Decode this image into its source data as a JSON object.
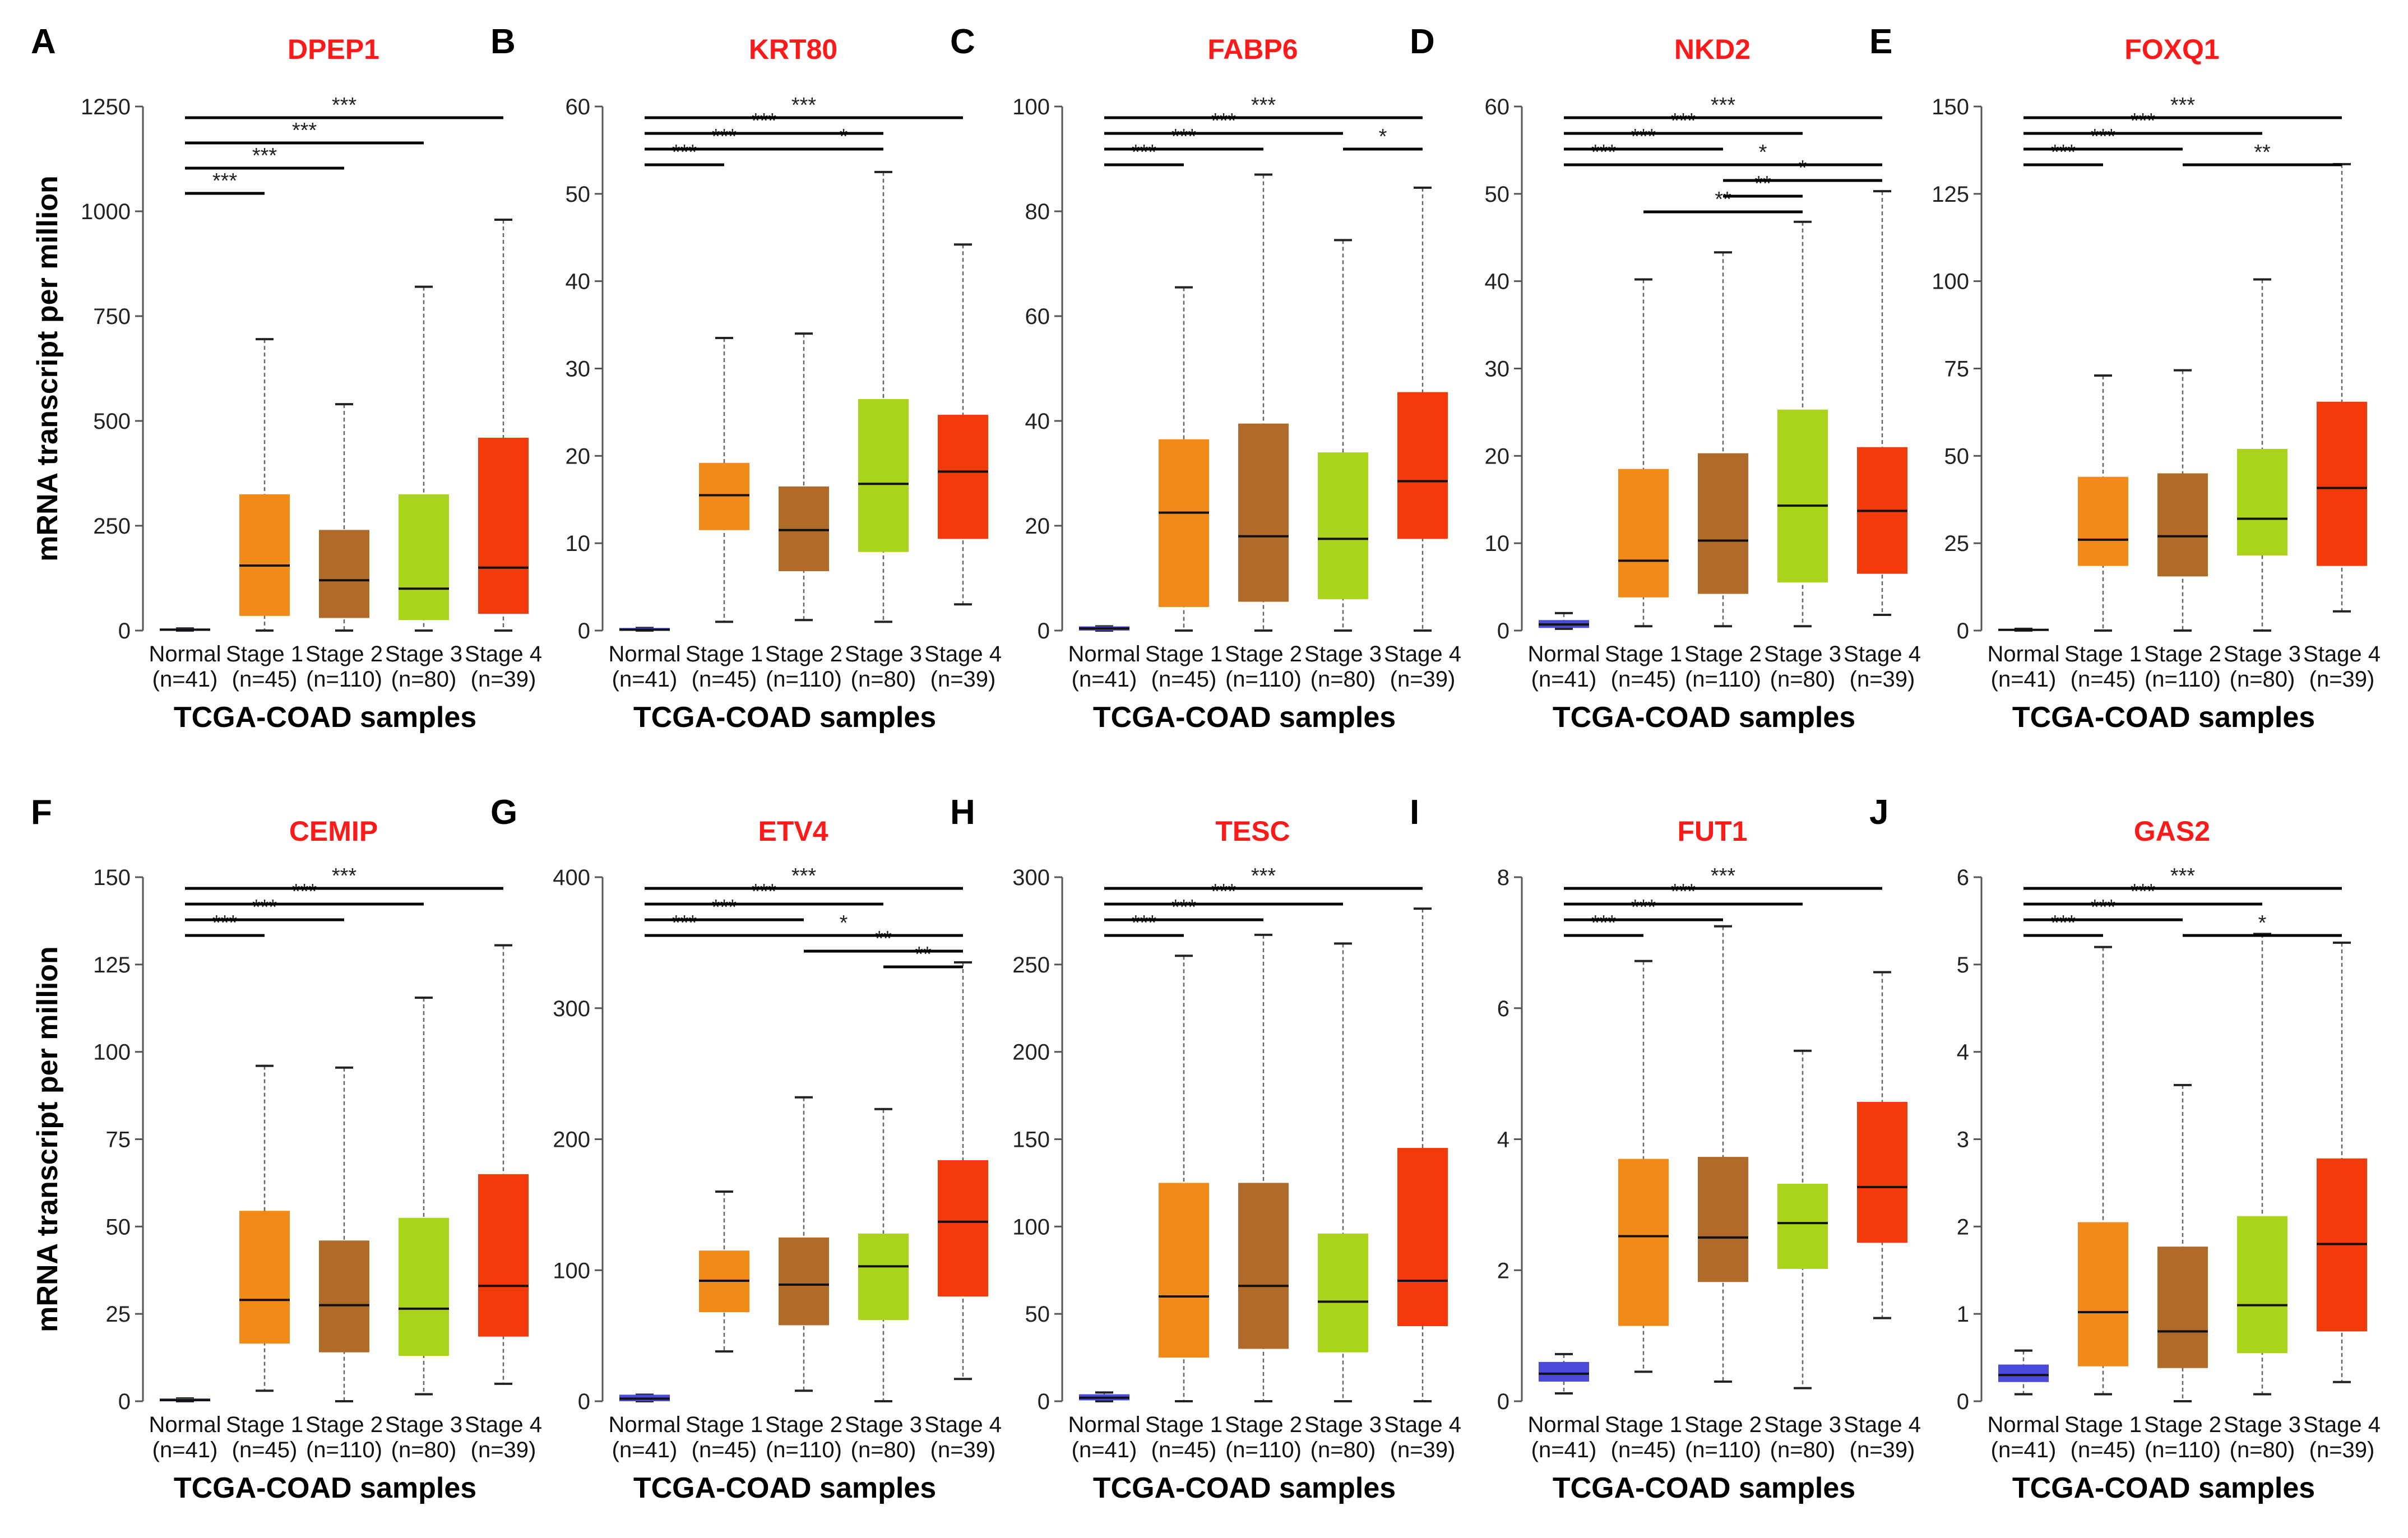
{
  "figure": {
    "ylabel": "mRNA transcript per million",
    "xlabel": "TCGA-COAD samples"
  },
  "categories": [
    {
      "name": "Normal",
      "n": "(n=41)",
      "color": "#4a4ad8"
    },
    {
      "name": "Stage 1",
      "n": "(n=45)",
      "color": "#f28a1a"
    },
    {
      "name": "Stage 2",
      "n": "(n=110)",
      "color": "#b06a2a"
    },
    {
      "name": "Stage 3",
      "n": "(n=80)",
      "color": "#aad41a"
    },
    {
      "name": "Stage 4",
      "n": "(n=39)",
      "color": "#f23a0a"
    }
  ],
  "chart_data": [
    {
      "type": "box",
      "panel": "A",
      "title": "DPEP1",
      "ylim": [
        0,
        1250
      ],
      "yticks": [
        0,
        250,
        500,
        750,
        1000,
        1250
      ],
      "boxes": [
        {
          "min": 0,
          "q1": 0,
          "median": 2,
          "q3": 5,
          "max": 5
        },
        {
          "min": 0,
          "q1": 35,
          "median": 155,
          "q3": 325,
          "max": 695
        },
        {
          "min": 0,
          "q1": 30,
          "median": 120,
          "q3": 240,
          "max": 540
        },
        {
          "min": 0,
          "q1": 25,
          "median": 100,
          "q3": 325,
          "max": 820
        },
        {
          "min": 0,
          "q1": 40,
          "median": 150,
          "q3": 460,
          "max": 980
        }
      ],
      "significance": [
        {
          "from": 0,
          "to": 1,
          "label": "***",
          "level": 0
        },
        {
          "from": 0,
          "to": 2,
          "label": "***",
          "level": 1
        },
        {
          "from": 0,
          "to": 3,
          "label": "***",
          "level": 2
        },
        {
          "from": 0,
          "to": 4,
          "label": "***",
          "level": 3
        }
      ]
    },
    {
      "type": "box",
      "panel": "B",
      "title": "KRT80",
      "ylim": [
        0,
        60
      ],
      "yticks": [
        0,
        10,
        20,
        30,
        40,
        50,
        60
      ],
      "boxes": [
        {
          "min": 0,
          "q1": 0,
          "median": 0.1,
          "q3": 0.3,
          "max": 0.3
        },
        {
          "min": 1,
          "q1": 11.5,
          "median": 15.5,
          "q3": 19.2,
          "max": 33.5
        },
        {
          "min": 1.2,
          "q1": 6.8,
          "median": 11.5,
          "q3": 16.5,
          "max": 34
        },
        {
          "min": 1,
          "q1": 9,
          "median": 16.8,
          "q3": 26.5,
          "max": 52.5
        },
        {
          "min": 3,
          "q1": 10.5,
          "median": 18.2,
          "q3": 24.7,
          "max": 44.2
        }
      ],
      "significance": [
        {
          "from": 0,
          "to": 1,
          "label": "***",
          "level": 0
        },
        {
          "from": 0,
          "to": 2,
          "label": "***",
          "level": 1
        },
        {
          "from": 2,
          "to": 3,
          "label": "*",
          "level": 1
        },
        {
          "from": 0,
          "to": 3,
          "label": "***",
          "level": 2
        },
        {
          "from": 0,
          "to": 4,
          "label": "***",
          "level": 3
        }
      ]
    },
    {
      "type": "box",
      "panel": "C",
      "title": "FABP6",
      "ylim": [
        0,
        100
      ],
      "yticks": [
        0,
        20,
        40,
        60,
        80,
        100
      ],
      "boxes": [
        {
          "min": 0,
          "q1": 0,
          "median": 0.4,
          "q3": 0.8,
          "max": 0.8
        },
        {
          "min": 0,
          "q1": 4.5,
          "median": 22.5,
          "q3": 36.5,
          "max": 65.5
        },
        {
          "min": 0,
          "q1": 5.5,
          "median": 18,
          "q3": 39.5,
          "max": 87
        },
        {
          "min": 0,
          "q1": 6,
          "median": 17.5,
          "q3": 34,
          "max": 74.5
        },
        {
          "min": 0,
          "q1": 17.5,
          "median": 28.5,
          "q3": 45.5,
          "max": 84.5
        }
      ],
      "significance": [
        {
          "from": 0,
          "to": 1,
          "label": "***",
          "level": 0
        },
        {
          "from": 0,
          "to": 2,
          "label": "***",
          "level": 1
        },
        {
          "from": 3,
          "to": 4,
          "label": "*",
          "level": 1
        },
        {
          "from": 0,
          "to": 3,
          "label": "***",
          "level": 2
        },
        {
          "from": 0,
          "to": 4,
          "label": "***",
          "level": 3
        }
      ]
    },
    {
      "type": "box",
      "panel": "D",
      "title": "NKD2",
      "ylim": [
        0,
        60
      ],
      "yticks": [
        0,
        10,
        20,
        30,
        40,
        50,
        60
      ],
      "boxes": [
        {
          "min": 0.2,
          "q1": 0.3,
          "median": 0.7,
          "q3": 1.2,
          "max": 2
        },
        {
          "min": 0.5,
          "q1": 3.8,
          "median": 8,
          "q3": 18.5,
          "max": 40.2
        },
        {
          "min": 0.5,
          "q1": 4.2,
          "median": 10.3,
          "q3": 20.3,
          "max": 43.3
        },
        {
          "min": 0.5,
          "q1": 5.5,
          "median": 14.3,
          "q3": 25.3,
          "max": 46.8
        },
        {
          "min": 1.8,
          "q1": 6.5,
          "median": 13.7,
          "q3": 21,
          "max": 50.3
        }
      ],
      "significance": [
        {
          "from": 1,
          "to": 3,
          "label": "**",
          "level": 0
        },
        {
          "from": 2,
          "to": 3,
          "label": "**",
          "level": 1
        },
        {
          "from": 2,
          "to": 4,
          "label": "*",
          "level": 2
        },
        {
          "from": 0,
          "to": 1,
          "label": "***",
          "level": 3
        },
        {
          "from": 1,
          "to": 4,
          "label": "*",
          "level": 3
        },
        {
          "from": 0,
          "to": 2,
          "label": "***",
          "level": 4
        },
        {
          "from": 0,
          "to": 3,
          "label": "***",
          "level": 5
        },
        {
          "from": 0,
          "to": 4,
          "label": "***",
          "level": 6
        }
      ]
    },
    {
      "type": "box",
      "panel": "E",
      "title": "FOXQ1",
      "ylim": [
        0,
        150
      ],
      "yticks": [
        0,
        25,
        50,
        75,
        100,
        125,
        150
      ],
      "boxes": [
        {
          "min": 0,
          "q1": 0,
          "median": 0.2,
          "q3": 0.5,
          "max": 0.5
        },
        {
          "min": 0,
          "q1": 18.5,
          "median": 26,
          "q3": 44,
          "max": 73
        },
        {
          "min": 0,
          "q1": 15.5,
          "median": 27,
          "q3": 45,
          "max": 74.5
        },
        {
          "min": 0,
          "q1": 21.5,
          "median": 32,
          "q3": 52,
          "max": 100.5
        },
        {
          "min": 5.5,
          "q1": 18.5,
          "median": 40.8,
          "q3": 65.5,
          "max": 133.5
        }
      ],
      "significance": [
        {
          "from": 0,
          "to": 1,
          "label": "***",
          "level": 0
        },
        {
          "from": 2,
          "to": 4,
          "label": "**",
          "level": 0
        },
        {
          "from": 0,
          "to": 2,
          "label": "***",
          "level": 1
        },
        {
          "from": 0,
          "to": 3,
          "label": "***",
          "level": 2
        },
        {
          "from": 0,
          "to": 4,
          "label": "***",
          "level": 3
        }
      ]
    },
    {
      "type": "box",
      "panel": "F",
      "title": "CEMIP",
      "ylim": [
        0,
        150
      ],
      "yticks": [
        0,
        25,
        50,
        75,
        100,
        125,
        150
      ],
      "boxes": [
        {
          "min": 0,
          "q1": 0,
          "median": 0.3,
          "q3": 0.8,
          "max": 0.8
        },
        {
          "min": 3,
          "q1": 16.5,
          "median": 29,
          "q3": 54.5,
          "max": 96
        },
        {
          "min": 0,
          "q1": 14,
          "median": 27.5,
          "q3": 46,
          "max": 95.5
        },
        {
          "min": 2,
          "q1": 13,
          "median": 26.5,
          "q3": 52.5,
          "max": 115.5
        },
        {
          "min": 5,
          "q1": 18.5,
          "median": 33,
          "q3": 65,
          "max": 130.5
        }
      ],
      "significance": [
        {
          "from": 0,
          "to": 1,
          "label": "***",
          "level": 0
        },
        {
          "from": 0,
          "to": 2,
          "label": "***",
          "level": 1
        },
        {
          "from": 0,
          "to": 3,
          "label": "***",
          "level": 2
        },
        {
          "from": 0,
          "to": 4,
          "label": "***",
          "level": 3
        }
      ]
    },
    {
      "type": "box",
      "panel": "G",
      "title": "ETV4",
      "ylim": [
        0,
        400
      ],
      "yticks": [
        0,
        100,
        200,
        300,
        400
      ],
      "boxes": [
        {
          "min": 0,
          "q1": 0,
          "median": 2,
          "q3": 5,
          "max": 5
        },
        {
          "min": 38,
          "q1": 68,
          "median": 92,
          "q3": 115,
          "max": 160
        },
        {
          "min": 8,
          "q1": 58,
          "median": 89,
          "q3": 125,
          "max": 232
        },
        {
          "min": 0,
          "q1": 62,
          "median": 103,
          "q3": 128,
          "max": 223
        },
        {
          "min": 17,
          "q1": 80,
          "median": 137,
          "q3": 184,
          "max": 335
        }
      ],
      "significance": [
        {
          "from": 3,
          "to": 4,
          "label": "**",
          "level": 0
        },
        {
          "from": 2,
          "to": 4,
          "label": "**",
          "level": 1
        },
        {
          "from": 0,
          "to": 1,
          "label": "***",
          "level": 2
        },
        {
          "from": 1,
          "to": 4,
          "label": "*",
          "level": 2
        },
        {
          "from": 0,
          "to": 2,
          "label": "***",
          "level": 3
        },
        {
          "from": 0,
          "to": 3,
          "label": "***",
          "level": 4
        },
        {
          "from": 0,
          "to": 4,
          "label": "***",
          "level": 5
        }
      ]
    },
    {
      "type": "box",
      "panel": "H",
      "title": "TESC",
      "ylim": [
        0,
        300
      ],
      "yticks": [
        0,
        50,
        100,
        150,
        200,
        250,
        300
      ],
      "boxes": [
        {
          "min": 0,
          "q1": 0.5,
          "median": 2,
          "q3": 4,
          "max": 5
        },
        {
          "min": 0,
          "q1": 25,
          "median": 60,
          "q3": 125,
          "max": 255
        },
        {
          "min": 0,
          "q1": 30,
          "median": 66,
          "q3": 125,
          "max": 267
        },
        {
          "min": 0,
          "q1": 28,
          "median": 57,
          "q3": 96,
          "max": 262
        },
        {
          "min": 0,
          "q1": 43,
          "median": 69,
          "q3": 145,
          "max": 282
        }
      ],
      "significance": [
        {
          "from": 0,
          "to": 1,
          "label": "***",
          "level": 0
        },
        {
          "from": 0,
          "to": 2,
          "label": "***",
          "level": 1
        },
        {
          "from": 0,
          "to": 3,
          "label": "***",
          "level": 2
        },
        {
          "from": 0,
          "to": 4,
          "label": "***",
          "level": 3
        }
      ]
    },
    {
      "type": "box",
      "panel": "I",
      "title": "FUT1",
      "ylim": [
        0,
        8
      ],
      "yticks": [
        0,
        2,
        4,
        6,
        8
      ],
      "boxes": [
        {
          "min": 0.12,
          "q1": 0.3,
          "median": 0.42,
          "q3": 0.6,
          "max": 0.72
        },
        {
          "min": 0.45,
          "q1": 1.15,
          "median": 2.52,
          "q3": 3.7,
          "max": 6.72
        },
        {
          "min": 0.3,
          "q1": 1.82,
          "median": 2.5,
          "q3": 3.73,
          "max": 7.25
        },
        {
          "min": 0.2,
          "q1": 2.02,
          "median": 2.72,
          "q3": 3.32,
          "max": 5.35
        },
        {
          "min": 1.27,
          "q1": 2.42,
          "median": 3.27,
          "q3": 4.57,
          "max": 6.55
        }
      ],
      "significance": [
        {
          "from": 0,
          "to": 1,
          "label": "***",
          "level": 0
        },
        {
          "from": 0,
          "to": 2,
          "label": "***",
          "level": 1
        },
        {
          "from": 0,
          "to": 3,
          "label": "***",
          "level": 2
        },
        {
          "from": 0,
          "to": 4,
          "label": "***",
          "level": 3
        }
      ]
    },
    {
      "type": "box",
      "panel": "J",
      "title": "GAS2",
      "ylim": [
        0,
        6
      ],
      "yticks": [
        0,
        1,
        2,
        3,
        4,
        5,
        6
      ],
      "boxes": [
        {
          "min": 0.08,
          "q1": 0.22,
          "median": 0.3,
          "q3": 0.42,
          "max": 0.58
        },
        {
          "min": 0.08,
          "q1": 0.4,
          "median": 1.02,
          "q3": 2.05,
          "max": 5.2
        },
        {
          "min": 0,
          "q1": 0.38,
          "median": 0.8,
          "q3": 1.77,
          "max": 3.62
        },
        {
          "min": 0.08,
          "q1": 0.55,
          "median": 1.1,
          "q3": 2.12,
          "max": 5.35
        },
        {
          "min": 0.22,
          "q1": 0.8,
          "median": 1.8,
          "q3": 2.78,
          "max": 5.25
        }
      ],
      "significance": [
        {
          "from": 0,
          "to": 1,
          "label": "***",
          "level": 0
        },
        {
          "from": 2,
          "to": 4,
          "label": "*",
          "level": 0
        },
        {
          "from": 0,
          "to": 2,
          "label": "***",
          "level": 1
        },
        {
          "from": 0,
          "to": 3,
          "label": "***",
          "level": 2
        },
        {
          "from": 0,
          "to": 4,
          "label": "***",
          "level": 3
        }
      ]
    }
  ]
}
